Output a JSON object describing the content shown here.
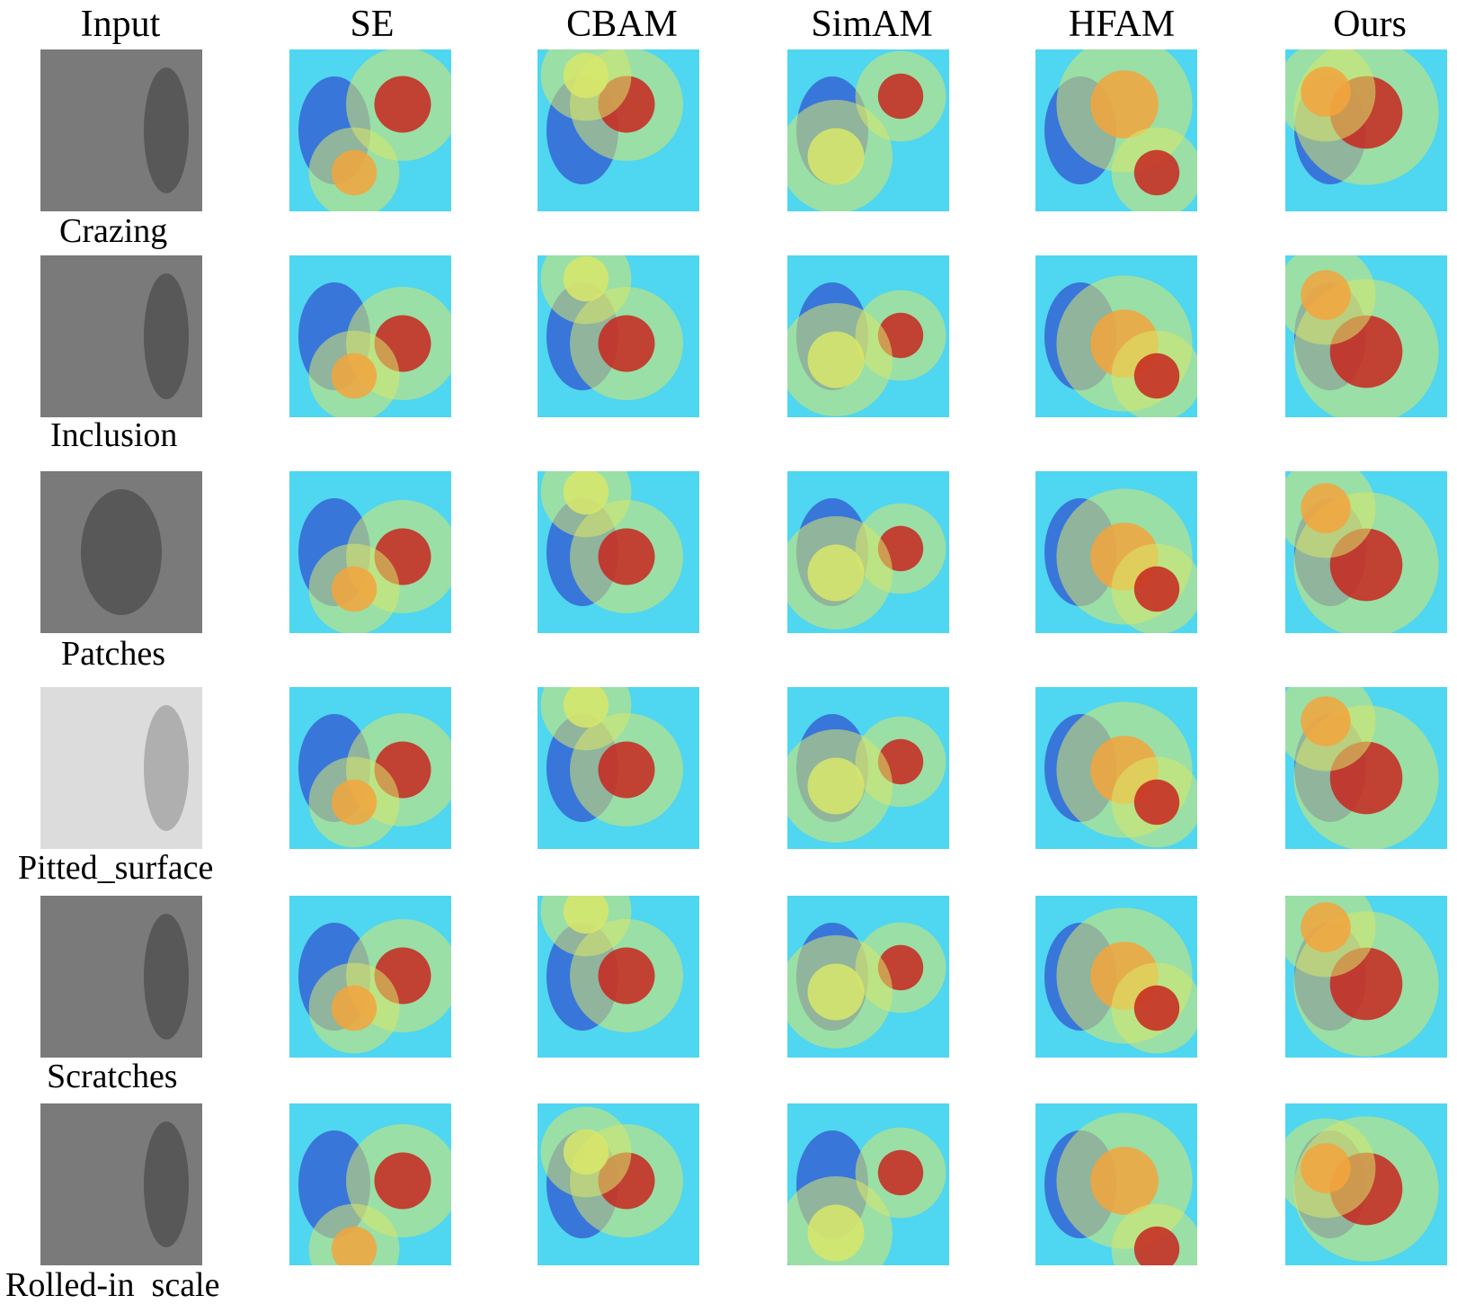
{
  "columns": [
    "Input",
    "SE",
    "CBAM",
    "SimAM",
    "HFAM",
    "Ours"
  ],
  "rows": [
    {
      "label": "Crazing"
    },
    {
      "label": "Inclusion"
    },
    {
      "label": "Patches"
    },
    {
      "label": "Pitted_surface"
    },
    {
      "label": "Scratches"
    },
    {
      "label": "Rolled-in  scale"
    }
  ],
  "colors": {
    "heat_low": "#2b35c9",
    "heat_mid_low": "#4fd6f0",
    "heat_mid": "#d8e86a",
    "heat_mid_high": "#f3a53c",
    "heat_high": "#c8261e",
    "input_gray": "#7a7a7a"
  }
}
